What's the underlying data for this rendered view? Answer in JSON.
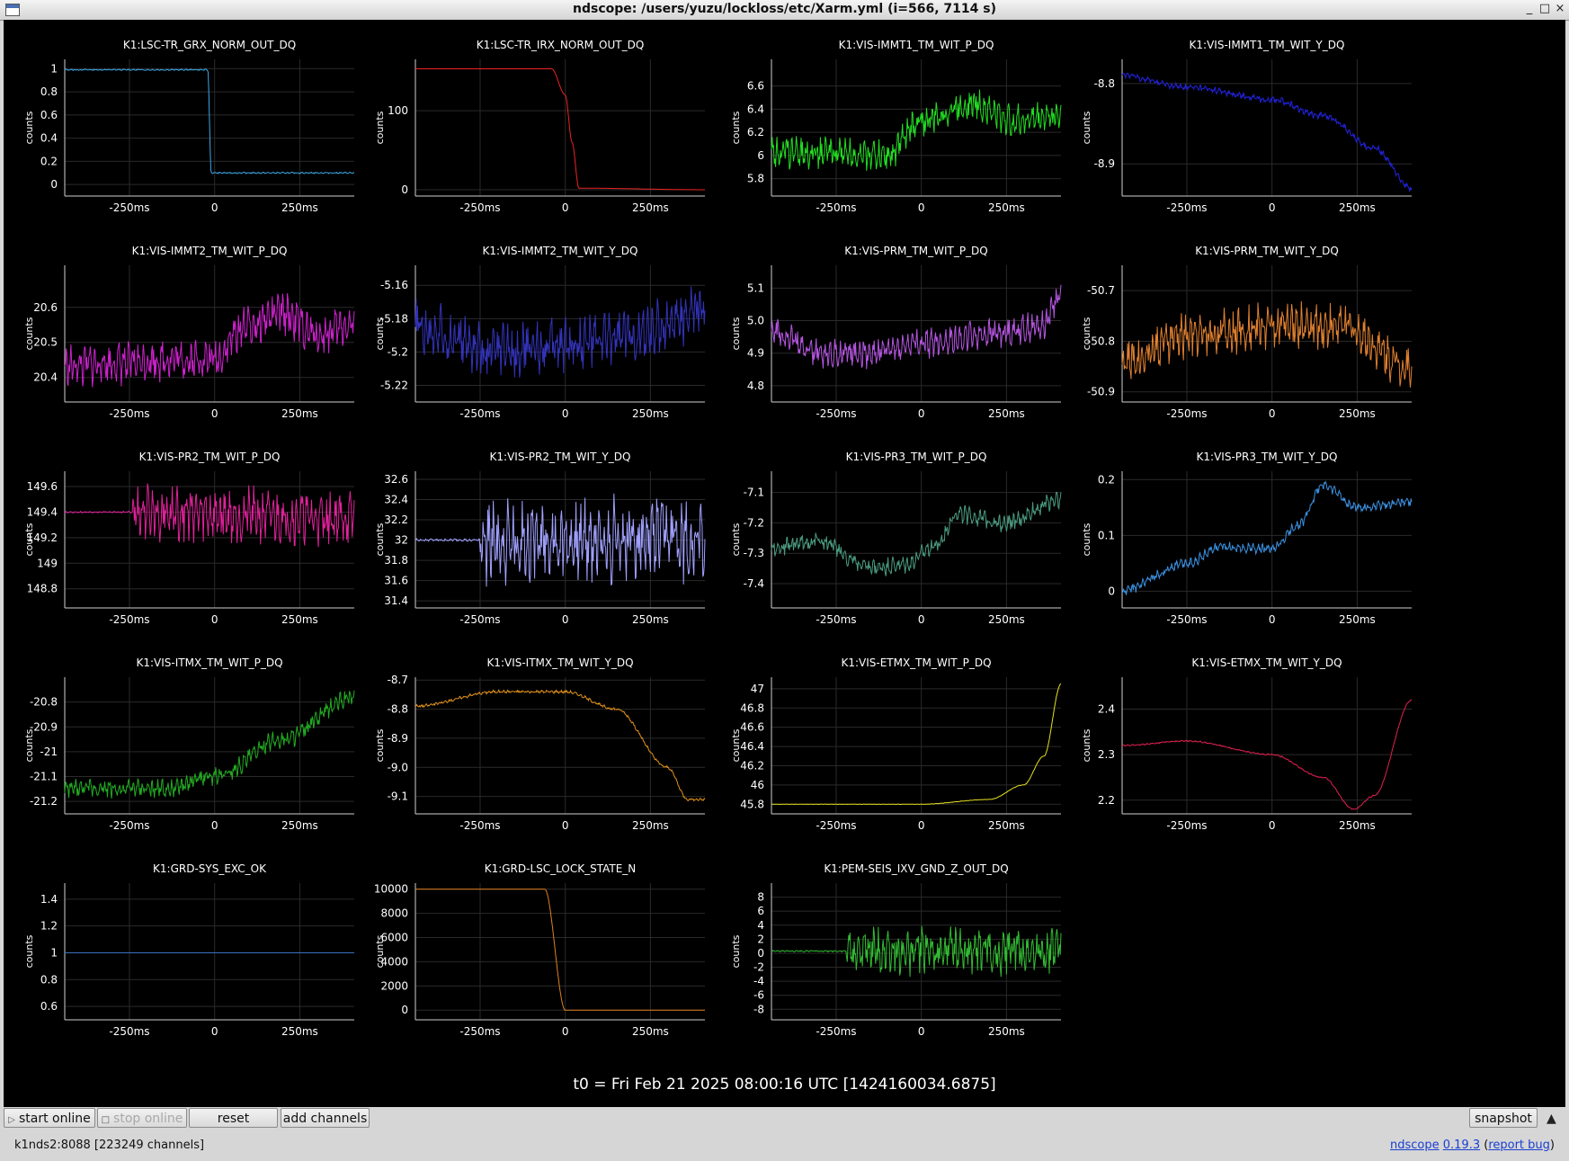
{
  "window": {
    "title": "ndscope: /users/yuzu/lockloss/etc/Xarm.yml (i=566, 7114 s)",
    "controls": [
      "_",
      "□",
      "×"
    ]
  },
  "t0_label": "t0 = Fri Feb 21 2025 08:00:16 UTC [1424160034.6875]",
  "toolbar": {
    "start_online": "start online",
    "stop_online": "stop online",
    "reset": "reset",
    "add_channels": "add channels",
    "snapshot": "snapshot",
    "collapse": "▲"
  },
  "status": {
    "server": "k1nds2:8088  [223249 channels]",
    "app": "ndscope",
    "version": "0.19.3",
    "report_bug": "report bug"
  },
  "colors": {
    "background": "#000000",
    "grid": "#2a2a2a",
    "axis": "#ffffff"
  },
  "chart_data": [
    {
      "type": "line",
      "title": "K1:LSC-TR_GRX_NORM_OUT_DQ",
      "ylabel": "counts",
      "color": "#3fa7e8",
      "x_ticks": [
        "-250ms",
        "0",
        "250ms"
      ],
      "y_ticks": [
        "0",
        "0.2",
        "0.4",
        "0.6",
        "0.8",
        "1"
      ],
      "ylim": [
        -0.1,
        1.08
      ],
      "anchors": [
        [
          -0.44,
          0.99
        ],
        [
          -0.02,
          0.99
        ],
        [
          -0.01,
          0.1
        ],
        [
          0.41,
          0.1
        ]
      ],
      "noise": 0.008
    },
    {
      "type": "line",
      "title": "K1:LSC-TR_IRX_NORM_OUT_DQ",
      "ylabel": "counts",
      "color": "#ee2222",
      "x_ticks": [
        "-250ms",
        "0",
        "250ms"
      ],
      "y_ticks": [
        "0",
        "100"
      ],
      "ylim": [
        -8,
        165
      ],
      "anchors": [
        [
          -0.44,
          153
        ],
        [
          -0.04,
          153
        ],
        [
          0.0,
          120
        ],
        [
          0.02,
          60
        ],
        [
          0.04,
          2
        ],
        [
          0.41,
          0
        ]
      ],
      "noise": 0
    },
    {
      "type": "line",
      "title": "K1:VIS-IMMT1_TM_WIT_P_DQ",
      "ylabel": "counts",
      "color": "#22dd22",
      "x_ticks": [
        "-250ms",
        "0",
        "250ms"
      ],
      "y_ticks": [
        "5.8",
        "6",
        "6.2",
        "6.4",
        "6.6"
      ],
      "ylim": [
        5.65,
        6.83
      ],
      "anchors": [
        [
          -0.44,
          6.03
        ],
        [
          -0.23,
          6.02
        ],
        [
          -0.1,
          6.0
        ],
        [
          0.0,
          6.3
        ],
        [
          0.15,
          6.45
        ],
        [
          0.27,
          6.3
        ],
        [
          0.41,
          6.35
        ]
      ],
      "noise": 0.18
    },
    {
      "type": "line",
      "title": "K1:VIS-IMMT1_TM_WIT_Y_DQ",
      "ylabel": "counts",
      "color": "#2222dd",
      "x_ticks": [
        "-250ms",
        "0",
        "250ms"
      ],
      "y_ticks": [
        "-8.8",
        "-8.9"
      ],
      "ylim": [
        -8.94,
        -8.77
      ],
      "anchors": [
        [
          -0.44,
          -8.79
        ],
        [
          -0.25,
          -8.805
        ],
        [
          0.0,
          -8.82
        ],
        [
          0.15,
          -8.84
        ],
        [
          0.3,
          -8.88
        ],
        [
          0.41,
          -8.93
        ]
      ],
      "noise": 0.006
    },
    {
      "type": "line",
      "title": "K1:VIS-IMMT2_TM_WIT_P_DQ",
      "ylabel": "counts",
      "color": "#cc22cc",
      "x_ticks": [
        "-250ms",
        "0",
        "250ms"
      ],
      "y_ticks": [
        "20.4",
        "20.5",
        "20.6"
      ],
      "ylim": [
        20.33,
        20.72
      ],
      "anchors": [
        [
          -0.44,
          20.43
        ],
        [
          -0.28,
          20.44
        ],
        [
          -0.15,
          20.45
        ],
        [
          0.0,
          20.45
        ],
        [
          0.09,
          20.55
        ],
        [
          0.2,
          20.58
        ],
        [
          0.3,
          20.52
        ],
        [
          0.41,
          20.55
        ]
      ],
      "noise": 0.08
    },
    {
      "type": "line",
      "title": "K1:VIS-IMMT2_TM_WIT_Y_DQ",
      "ylabel": "counts",
      "color": "#3333bb",
      "x_ticks": [
        "-250ms",
        "0",
        "250ms"
      ],
      "y_ticks": [
        "-5.16",
        "-5.18",
        "-5.2",
        "-5.22"
      ],
      "ylim": [
        -5.23,
        -5.148
      ],
      "anchors": [
        [
          -0.44,
          -5.185
        ],
        [
          -0.2,
          -5.2
        ],
        [
          0.0,
          -5.195
        ],
        [
          0.2,
          -5.19
        ],
        [
          0.41,
          -5.175
        ]
      ],
      "noise": 0.022
    },
    {
      "type": "line",
      "title": "K1:VIS-PRM_TM_WIT_P_DQ",
      "ylabel": "counts",
      "color": "#b455e0",
      "x_ticks": [
        "-250ms",
        "0",
        "250ms"
      ],
      "y_ticks": [
        "4.8",
        "4.9",
        "5.0",
        "5.1"
      ],
      "ylim": [
        4.75,
        5.17
      ],
      "anchors": [
        [
          -0.44,
          4.97
        ],
        [
          -0.3,
          4.9
        ],
        [
          -0.15,
          4.9
        ],
        [
          0.0,
          4.93
        ],
        [
          0.2,
          4.96
        ],
        [
          0.35,
          4.98
        ],
        [
          0.41,
          5.08
        ]
      ],
      "noise": 0.06
    },
    {
      "type": "line",
      "title": "K1:VIS-PRM_TM_WIT_Y_DQ",
      "ylabel": "counts",
      "color": "#e08030",
      "x_ticks": [
        "-250ms",
        "0",
        "250ms"
      ],
      "y_ticks": [
        "-50.7",
        "-50.8",
        "-50.9"
      ],
      "ylim": [
        -50.92,
        -50.65
      ],
      "anchors": [
        [
          -0.44,
          -50.84
        ],
        [
          -0.25,
          -50.79
        ],
        [
          0.0,
          -50.77
        ],
        [
          0.2,
          -50.77
        ],
        [
          0.41,
          -50.85
        ]
      ],
      "noise": 0.06
    },
    {
      "type": "line",
      "title": "K1:VIS-PR2_TM_WIT_P_DQ",
      "ylabel": "counts",
      "color": "#e0229a",
      "x_ticks": [
        "-250ms",
        "0",
        "250ms"
      ],
      "y_ticks": [
        "148.8",
        "149",
        "149.2",
        "149.4",
        "149.6"
      ],
      "ylim": [
        148.65,
        149.72
      ],
      "anchors": [
        [
          -0.44,
          149.4
        ],
        [
          -0.25,
          149.4
        ],
        [
          0.41,
          149.35
        ]
      ],
      "noise": 0.28,
      "burst_start": -0.24
    },
    {
      "type": "line",
      "title": "K1:VIS-PR2_TM_WIT_Y_DQ",
      "ylabel": "counts",
      "color": "#a0a0ff",
      "x_ticks": [
        "-250ms",
        "0",
        "250ms"
      ],
      "y_ticks": [
        "31.4",
        "31.6",
        "31.8",
        "32",
        "32.2",
        "32.4",
        "32.6"
      ],
      "ylim": [
        31.33,
        32.68
      ],
      "anchors": [
        [
          -0.44,
          32.0
        ],
        [
          -0.25,
          32.0
        ],
        [
          0.41,
          32.0
        ]
      ],
      "noise": 0.55,
      "burst_start": -0.25
    },
    {
      "type": "line",
      "title": "K1:VIS-PR3_TM_WIT_P_DQ",
      "ylabel": "counts",
      "color": "#4a9a80",
      "x_ticks": [
        "-250ms",
        "0",
        "250ms"
      ],
      "y_ticks": [
        "-7.1",
        "-7.2",
        "-7.3",
        "-7.4"
      ],
      "ylim": [
        -7.48,
        -7.03
      ],
      "anchors": [
        [
          -0.44,
          -7.28
        ],
        [
          -0.3,
          -7.26
        ],
        [
          -0.15,
          -7.35
        ],
        [
          -0.05,
          -7.34
        ],
        [
          0.05,
          -7.27
        ],
        [
          0.1,
          -7.17
        ],
        [
          0.25,
          -7.2
        ],
        [
          0.41,
          -7.12
        ]
      ],
      "noise": 0.04
    },
    {
      "type": "line",
      "title": "K1:VIS-PR3_TM_WIT_Y_DQ",
      "ylabel": "counts",
      "color": "#3a90e0",
      "x_ticks": [
        "-250ms",
        "0",
        "250ms"
      ],
      "y_ticks": [
        "0",
        "0.1",
        "0.2"
      ],
      "ylim": [
        -0.03,
        0.215
      ],
      "anchors": [
        [
          -0.44,
          0.0
        ],
        [
          -0.25,
          0.05
        ],
        [
          -0.15,
          0.08
        ],
        [
          0.0,
          0.075
        ],
        [
          0.08,
          0.12
        ],
        [
          0.15,
          0.19
        ],
        [
          0.25,
          0.15
        ],
        [
          0.41,
          0.16
        ]
      ],
      "noise": 0.012
    },
    {
      "type": "line",
      "title": "K1:VIS-ITMX_TM_WIT_P_DQ",
      "ylabel": "counts",
      "color": "#22aa22",
      "x_ticks": [
        "-250ms",
        "0",
        "250ms"
      ],
      "y_ticks": [
        "-20.8",
        "-20.9",
        "-21",
        "-21.1",
        "-21.2"
      ],
      "ylim": [
        -21.25,
        -20.7
      ],
      "anchors": [
        [
          -0.44,
          -21.15
        ],
        [
          -0.15,
          -21.15
        ],
        [
          0.0,
          -21.1
        ],
        [
          0.2,
          -20.95
        ],
        [
          0.41,
          -20.78
        ]
      ],
      "noise": 0.05
    },
    {
      "type": "line",
      "title": "K1:VIS-ITMX_TM_WIT_Y_DQ",
      "ylabel": "counts",
      "color": "#e0901a",
      "x_ticks": [
        "-250ms",
        "0",
        "250ms"
      ],
      "y_ticks": [
        "-8.7",
        "-8.8",
        "-8.9",
        "-9.0",
        "-9.1"
      ],
      "ylim": [
        -9.16,
        -8.69
      ],
      "anchors": [
        [
          -0.44,
          -8.79
        ],
        [
          -0.2,
          -8.74
        ],
        [
          0.0,
          -8.74
        ],
        [
          0.15,
          -8.8
        ],
        [
          0.3,
          -9.0
        ],
        [
          0.36,
          -9.11
        ],
        [
          0.41,
          -9.11
        ]
      ],
      "noise": 0.007
    },
    {
      "type": "line",
      "title": "K1:VIS-ETMX_TM_WIT_P_DQ",
      "ylabel": "counts",
      "color": "#e6e020",
      "x_ticks": [
        "-250ms",
        "0",
        "250ms"
      ],
      "y_ticks": [
        "45.8",
        "46",
        "46.2",
        "46.4",
        "46.6",
        "46.8",
        "47"
      ],
      "ylim": [
        45.7,
        47.12
      ],
      "anchors": [
        [
          -0.44,
          45.8
        ],
        [
          0.0,
          45.8
        ],
        [
          0.2,
          45.85
        ],
        [
          0.3,
          46.0
        ],
        [
          0.36,
          46.3
        ],
        [
          0.41,
          47.05
        ]
      ],
      "noise": 0.003
    },
    {
      "type": "line",
      "title": "K1:VIS-ETMX_TM_WIT_Y_DQ",
      "ylabel": "counts",
      "color": "#e02050",
      "x_ticks": [
        "-250ms",
        "0",
        "250ms"
      ],
      "y_ticks": [
        "2.2",
        "2.3",
        "2.4"
      ],
      "ylim": [
        2.17,
        2.47
      ],
      "anchors": [
        [
          -0.44,
          2.32
        ],
        [
          -0.25,
          2.33
        ],
        [
          0.0,
          2.3
        ],
        [
          0.15,
          2.25
        ],
        [
          0.24,
          2.18
        ],
        [
          0.3,
          2.21
        ],
        [
          0.41,
          2.42
        ]
      ],
      "noise": 0.002
    },
    {
      "type": "line",
      "title": "K1:GRD-SYS_EXC_OK",
      "ylabel": "counts",
      "color": "#3a70c0",
      "x_ticks": [
        "-250ms",
        "0",
        "250ms"
      ],
      "y_ticks": [
        "0.6",
        "0.8",
        "1",
        "1.2",
        "1.4"
      ],
      "ylim": [
        0.5,
        1.52
      ],
      "anchors": [
        [
          -0.44,
          1.0
        ],
        [
          0.41,
          1.0
        ]
      ],
      "noise": 0
    },
    {
      "type": "line",
      "title": "K1:GRD-LSC_LOCK_STATE_N",
      "ylabel": "counts",
      "color": "#e08020",
      "x_ticks": [
        "-250ms",
        "0",
        "250ms"
      ],
      "y_ticks": [
        "0",
        "2000",
        "4000",
        "6000",
        "8000",
        "10000"
      ],
      "ylim": [
        -800,
        10500
      ],
      "anchors": [
        [
          -0.44,
          10000
        ],
        [
          -0.06,
          10000
        ],
        [
          0.0,
          0
        ],
        [
          0.41,
          0
        ]
      ],
      "noise": 0
    },
    {
      "type": "line",
      "title": "K1:PEM-SEIS_IXV_GND_Z_OUT_DQ",
      "ylabel": "counts",
      "color": "#33bb33",
      "x_ticks": [
        "-250ms",
        "0",
        "250ms"
      ],
      "y_ticks": [
        "8",
        "6",
        "4",
        "2",
        "0",
        "-2",
        "-4",
        "-6",
        "-8"
      ],
      "ylim": [
        -9.5,
        10
      ],
      "anchors": [
        [
          -0.44,
          0.3
        ],
        [
          -0.22,
          0.3
        ],
        [
          0.41,
          0.3
        ]
      ],
      "noise": 4.5,
      "burst_start": -0.22
    }
  ]
}
